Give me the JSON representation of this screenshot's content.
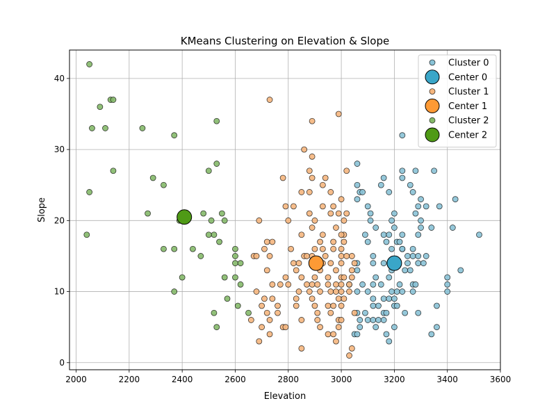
{
  "chart_data": {
    "type": "scatter",
    "title": "KMeans Clustering on Elevation & Slope",
    "xlabel": "Elevation",
    "ylabel": "Slope",
    "xlim": [
      1975,
      3600
    ],
    "ylim": [
      -1,
      44
    ],
    "xticks": [
      2000,
      2200,
      2400,
      2600,
      2800,
      3000,
      3200,
      3400,
      3600
    ],
    "yticks": [
      0,
      10,
      20,
      30,
      40
    ],
    "grid": true,
    "legend_position": "top-right",
    "series": [
      {
        "name": "Cluster 0",
        "color": "#89c2d6",
        "marker": "point",
        "points": [
          [
            3060,
            28
          ],
          [
            3160,
            26
          ],
          [
            3230,
            26
          ],
          [
            3230,
            27
          ],
          [
            3280,
            27
          ],
          [
            3350,
            27
          ],
          [
            3060,
            25
          ],
          [
            3150,
            25
          ],
          [
            3260,
            25
          ],
          [
            3070,
            24
          ],
          [
            3180,
            24
          ],
          [
            3080,
            24
          ],
          [
            3270,
            24
          ],
          [
            3100,
            22
          ],
          [
            3300,
            23
          ],
          [
            3370,
            22
          ],
          [
            3430,
            23
          ],
          [
            3230,
            32
          ],
          [
            3290,
            22
          ],
          [
            3320,
            22
          ],
          [
            3110,
            21
          ],
          [
            3060,
            23
          ],
          [
            3200,
            21
          ],
          [
            3280,
            21
          ],
          [
            3110,
            20
          ],
          [
            3190,
            20
          ],
          [
            3300,
            20
          ],
          [
            3300,
            19
          ],
          [
            3340,
            19
          ],
          [
            3420,
            19
          ],
          [
            3130,
            19
          ],
          [
            3200,
            19
          ],
          [
            3090,
            18
          ],
          [
            3160,
            18
          ],
          [
            3180,
            18
          ],
          [
            3230,
            18
          ],
          [
            3290,
            18
          ],
          [
            3520,
            18
          ],
          [
            3100,
            17
          ],
          [
            3170,
            17
          ],
          [
            3210,
            17
          ],
          [
            3220,
            17
          ],
          [
            3190,
            16
          ],
          [
            3230,
            16
          ],
          [
            3230,
            16
          ],
          [
            3270,
            16
          ],
          [
            3120,
            15
          ],
          [
            3250,
            15
          ],
          [
            3270,
            15
          ],
          [
            3290,
            15
          ],
          [
            3320,
            15
          ],
          [
            3060,
            14
          ],
          [
            3120,
            14
          ],
          [
            3160,
            14
          ],
          [
            3200,
            14
          ],
          [
            3250,
            14
          ],
          [
            3290,
            14
          ],
          [
            3310,
            14
          ],
          [
            3190,
            13
          ],
          [
            3240,
            13
          ],
          [
            3260,
            13
          ],
          [
            3450,
            13
          ],
          [
            3060,
            13
          ],
          [
            3180,
            12
          ],
          [
            3130,
            12
          ],
          [
            3400,
            12
          ],
          [
            3030,
            11
          ],
          [
            3080,
            11
          ],
          [
            3120,
            11
          ],
          [
            3150,
            11
          ],
          [
            3220,
            11
          ],
          [
            3270,
            11
          ],
          [
            3280,
            11
          ],
          [
            3400,
            11
          ],
          [
            3060,
            10
          ],
          [
            3100,
            10
          ],
          [
            3190,
            10
          ],
          [
            3210,
            10
          ],
          [
            3230,
            10
          ],
          [
            3270,
            10
          ],
          [
            3400,
            10
          ],
          [
            3120,
            9
          ],
          [
            3160,
            9
          ],
          [
            3180,
            9
          ],
          [
            3200,
            9
          ],
          [
            3140,
            8
          ],
          [
            3120,
            8
          ],
          [
            3200,
            8
          ],
          [
            3210,
            8
          ],
          [
            3360,
            8
          ],
          [
            3060,
            7
          ],
          [
            3090,
            7
          ],
          [
            3160,
            7
          ],
          [
            3170,
            7
          ],
          [
            3240,
            7
          ],
          [
            3290,
            7
          ],
          [
            3070,
            6
          ],
          [
            3100,
            6
          ],
          [
            3120,
            6
          ],
          [
            3140,
            6
          ],
          [
            3160,
            6
          ],
          [
            3070,
            5
          ],
          [
            3130,
            5
          ],
          [
            3200,
            5
          ],
          [
            3360,
            5
          ],
          [
            3050,
            4
          ],
          [
            3060,
            4
          ],
          [
            3170,
            4
          ],
          [
            3340,
            4
          ],
          [
            3180,
            3
          ]
        ]
      },
      {
        "name": "Center 0",
        "color": "#3aa6c8",
        "marker": "center",
        "points": [
          [
            3200,
            14
          ]
        ]
      },
      {
        "name": "Cluster 1",
        "color": "#f5b67e",
        "marker": "point",
        "points": [
          [
            2730,
            37
          ],
          [
            2990,
            35
          ],
          [
            2890,
            34
          ],
          [
            2860,
            30
          ],
          [
            2890,
            29
          ],
          [
            2880,
            27
          ],
          [
            3020,
            27
          ],
          [
            2890,
            26
          ],
          [
            2780,
            26
          ],
          [
            2940,
            26
          ],
          [
            2850,
            24
          ],
          [
            2880,
            24
          ],
          [
            2930,
            25
          ],
          [
            2960,
            24
          ],
          [
            2970,
            22
          ],
          [
            2930,
            22
          ],
          [
            2790,
            22
          ],
          [
            2820,
            22
          ],
          [
            3000,
            23
          ],
          [
            2960,
            21
          ],
          [
            3020,
            21
          ],
          [
            2990,
            21
          ],
          [
            2880,
            21
          ],
          [
            2690,
            20
          ],
          [
            2800,
            20
          ],
          [
            2900,
            20
          ],
          [
            3010,
            20
          ],
          [
            2980,
            19
          ],
          [
            2890,
            19
          ],
          [
            3010,
            18
          ],
          [
            2850,
            18
          ],
          [
            2930,
            18
          ],
          [
            3000,
            18
          ],
          [
            2720,
            17
          ],
          [
            2740,
            17
          ],
          [
            2920,
            17
          ],
          [
            2970,
            17
          ],
          [
            3010,
            17
          ],
          [
            2810,
            16
          ],
          [
            2710,
            16
          ],
          [
            2900,
            16
          ],
          [
            2930,
            16
          ],
          [
            3000,
            16
          ],
          [
            2970,
            16
          ],
          [
            2670,
            15
          ],
          [
            2680,
            15
          ],
          [
            2730,
            15
          ],
          [
            2860,
            15
          ],
          [
            2870,
            15
          ],
          [
            2890,
            15
          ],
          [
            2940,
            15
          ],
          [
            3000,
            15
          ],
          [
            3020,
            15
          ],
          [
            3040,
            15
          ],
          [
            2820,
            14
          ],
          [
            2840,
            14
          ],
          [
            2900,
            14
          ],
          [
            2930,
            14
          ],
          [
            2960,
            14
          ],
          [
            3000,
            14
          ],
          [
            3050,
            14
          ],
          [
            2830,
            13
          ],
          [
            2920,
            13
          ],
          [
            2980,
            13
          ],
          [
            3040,
            13
          ],
          [
            2720,
            13
          ],
          [
            2790,
            12
          ],
          [
            2850,
            12
          ],
          [
            2900,
            12
          ],
          [
            2950,
            12
          ],
          [
            3000,
            12
          ],
          [
            3010,
            12
          ],
          [
            3040,
            12
          ],
          [
            2740,
            11
          ],
          [
            2770,
            11
          ],
          [
            2800,
            11
          ],
          [
            2870,
            11
          ],
          [
            2890,
            11
          ],
          [
            2910,
            11
          ],
          [
            2950,
            11
          ],
          [
            2980,
            11
          ],
          [
            3000,
            11
          ],
          [
            3030,
            11
          ],
          [
            2680,
            10
          ],
          [
            2840,
            10
          ],
          [
            2880,
            10
          ],
          [
            2920,
            10
          ],
          [
            2960,
            10
          ],
          [
            2980,
            10
          ],
          [
            3000,
            10
          ],
          [
            3030,
            10
          ],
          [
            2710,
            9
          ],
          [
            2740,
            9
          ],
          [
            2830,
            9
          ],
          [
            2890,
            9
          ],
          [
            2990,
            9
          ],
          [
            3010,
            9
          ],
          [
            2700,
            8
          ],
          [
            2760,
            8
          ],
          [
            2830,
            8
          ],
          [
            2900,
            8
          ],
          [
            2950,
            8
          ],
          [
            2970,
            8
          ],
          [
            3000,
            8
          ],
          [
            2720,
            7
          ],
          [
            2760,
            7
          ],
          [
            2910,
            7
          ],
          [
            2960,
            7
          ],
          [
            3050,
            7
          ],
          [
            2660,
            6
          ],
          [
            2730,
            6
          ],
          [
            2850,
            6
          ],
          [
            2910,
            6
          ],
          [
            2990,
            6
          ],
          [
            3000,
            6
          ],
          [
            2700,
            5
          ],
          [
            2780,
            5
          ],
          [
            2790,
            5
          ],
          [
            2920,
            5
          ],
          [
            2990,
            5
          ],
          [
            2730,
            4
          ],
          [
            2950,
            4
          ],
          [
            2970,
            4
          ],
          [
            2690,
            3
          ],
          [
            2980,
            3
          ],
          [
            2850,
            2
          ],
          [
            3040,
            2
          ],
          [
            3030,
            1
          ]
        ]
      },
      {
        "name": "Center 1",
        "color": "#fd9a35",
        "marker": "center",
        "points": [
          [
            2905,
            14
          ]
        ]
      },
      {
        "name": "Cluster 2",
        "color": "#85b96a",
        "marker": "point",
        "points": [
          [
            2050,
            42
          ],
          [
            2130,
            37
          ],
          [
            2140,
            37
          ],
          [
            2090,
            36
          ],
          [
            2060,
            33
          ],
          [
            2110,
            33
          ],
          [
            2250,
            33
          ],
          [
            2530,
            34
          ],
          [
            2370,
            32
          ],
          [
            2530,
            28
          ],
          [
            2500,
            27
          ],
          [
            2140,
            27
          ],
          [
            2290,
            26
          ],
          [
            2330,
            25
          ],
          [
            2050,
            24
          ],
          [
            2270,
            21
          ],
          [
            2480,
            21
          ],
          [
            2550,
            21
          ],
          [
            2510,
            20
          ],
          [
            2560,
            20
          ],
          [
            2390,
            20
          ],
          [
            2520,
            18
          ],
          [
            2500,
            18
          ],
          [
            2040,
            18
          ],
          [
            2540,
            17
          ],
          [
            2330,
            16
          ],
          [
            2370,
            16
          ],
          [
            2440,
            16
          ],
          [
            2600,
            16
          ],
          [
            2470,
            15
          ],
          [
            2600,
            15
          ],
          [
            2600,
            14
          ],
          [
            2620,
            14
          ],
          [
            2560,
            12
          ],
          [
            2600,
            12
          ],
          [
            2400,
            12
          ],
          [
            2620,
            11
          ],
          [
            2370,
            10
          ],
          [
            2570,
            9
          ],
          [
            2610,
            8
          ],
          [
            2650,
            7
          ],
          [
            2520,
            7
          ],
          [
            2530,
            5
          ]
        ]
      },
      {
        "name": "Center 2",
        "color": "#4f9a16",
        "marker": "center",
        "points": [
          [
            2408,
            20.5
          ]
        ]
      }
    ]
  }
}
